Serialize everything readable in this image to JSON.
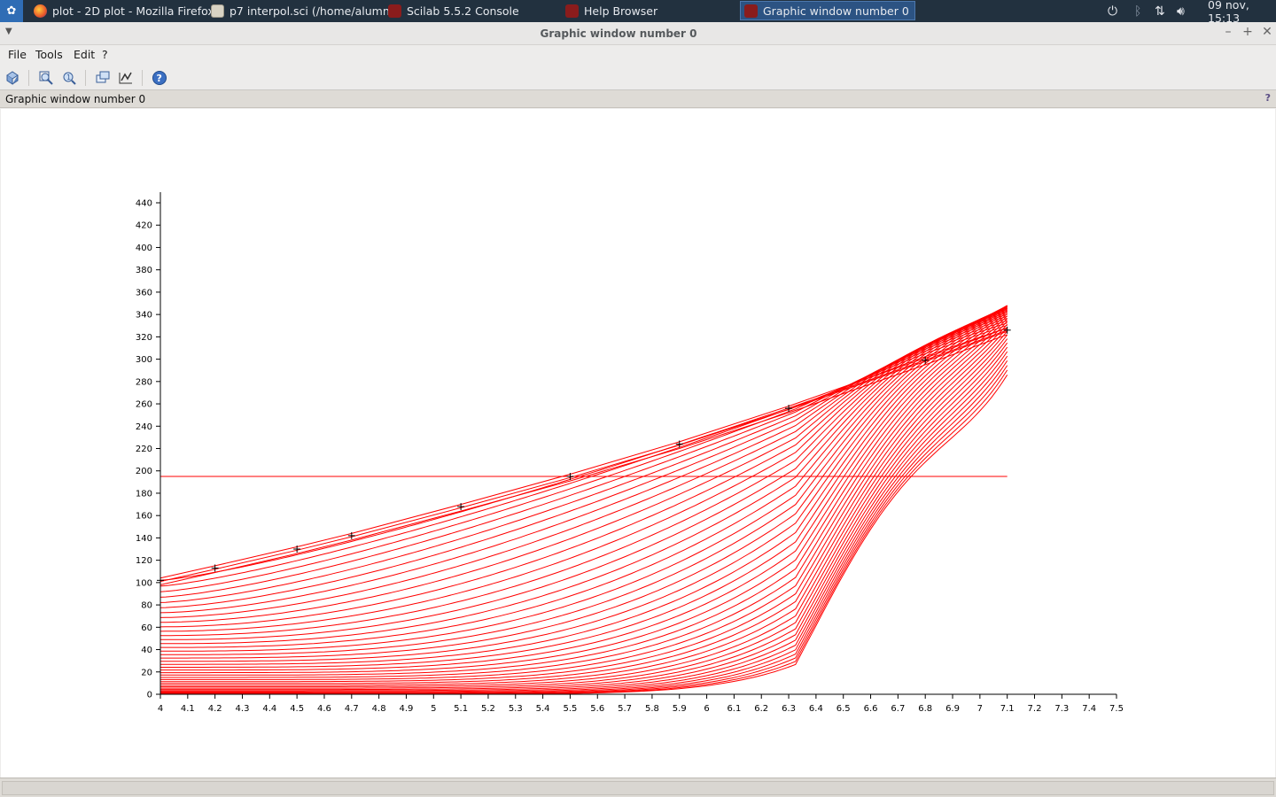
{
  "taskbar": {
    "tasks": [
      {
        "label": "plot - 2D plot - Mozilla Firefox",
        "icon": "firefox-icon"
      },
      {
        "label": "p7 interpol.sci (/home/alumn...",
        "icon": "text-editor-icon"
      },
      {
        "label": "Scilab 5.5.2 Console",
        "icon": "scilab-icon"
      },
      {
        "label": "Help Browser",
        "icon": "scilab-icon"
      },
      {
        "label": "Graphic window number 0",
        "icon": "scilab-icon"
      }
    ],
    "clock": "09 nov, 15:13"
  },
  "window": {
    "title": "Graphic window number 0",
    "menu": {
      "file": "File",
      "tools": "Tools",
      "edit": "Edit",
      "help": "?"
    },
    "infobar_label": "Graphic window number 0",
    "infobar_help": "?"
  },
  "colors": {
    "curve": "#ff0000",
    "axis": "#000000",
    "marker": "#000000"
  },
  "chart_data": {
    "type": "line",
    "title": "",
    "xlabel": "",
    "ylabel": "",
    "xlim": [
      4,
      7.5
    ],
    "ylim": [
      0,
      440
    ],
    "x_ticks": [
      "4",
      "4.1",
      "4.2",
      "4.3",
      "4.4",
      "4.5",
      "4.6",
      "4.7",
      "4.8",
      "4.9",
      "5",
      "5.1",
      "5.2",
      "5.3",
      "5.4",
      "5.5",
      "5.6",
      "5.7",
      "5.8",
      "5.9",
      "6",
      "6.1",
      "6.2",
      "6.3",
      "6.4",
      "6.5",
      "6.6",
      "6.7",
      "6.8",
      "6.9",
      "7",
      "7.1",
      "7.2",
      "7.3",
      "7.4",
      "7.5"
    ],
    "y_ticks": [
      "0",
      "20",
      "40",
      "60",
      "80",
      "100",
      "120",
      "140",
      "160",
      "180",
      "200",
      "220",
      "240",
      "260",
      "280",
      "300",
      "320",
      "340",
      "360",
      "380",
      "400",
      "420",
      "440"
    ],
    "grid": false,
    "data_points": {
      "x": [
        4.0,
        4.2,
        4.5,
        4.7,
        5.1,
        5.5,
        5.9,
        6.3,
        6.8,
        7.1
      ],
      "y": [
        102,
        113,
        130,
        142,
        168,
        195,
        224,
        256,
        299,
        326
      ]
    },
    "horizontal_line": {
      "y": 195,
      "x_range": [
        4.0,
        7.1
      ]
    },
    "interpolation_family": {
      "description": "red curves of the form a + b*x^k fitted through the data points",
      "count": 40,
      "x_range": [
        4.0,
        7.1
      ]
    }
  }
}
